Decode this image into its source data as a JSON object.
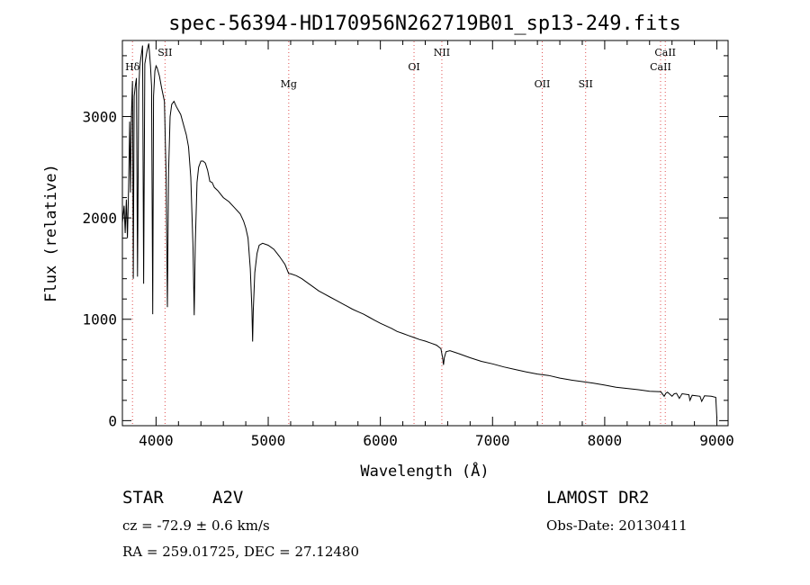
{
  "chart_data": {
    "type": "line",
    "title": "spec-56394-HD170956N262719B01_sp13-249.fits",
    "xlabel": "Wavelength (Å)",
    "ylabel": "Flux (relative)",
    "xlim": [
      3700,
      9100
    ],
    "ylim": [
      -50,
      3750
    ],
    "xticks": [
      4000,
      5000,
      6000,
      7000,
      8000,
      9000
    ],
    "yticks": [
      0,
      1000,
      2000,
      3000
    ],
    "grid": false,
    "series": [
      {
        "points": [
          [
            3700,
            1950
          ],
          [
            3715,
            2120
          ],
          [
            3725,
            1850
          ],
          [
            3735,
            2180
          ],
          [
            3745,
            1800
          ],
          [
            3755,
            2300
          ],
          [
            3765,
            2950
          ],
          [
            3772,
            2250
          ],
          [
            3780,
            3000
          ],
          [
            3790,
            3350
          ],
          [
            3797,
            1400
          ],
          [
            3805,
            3200
          ],
          [
            3815,
            3300
          ],
          [
            3825,
            3380
          ],
          [
            3835,
            1420
          ],
          [
            3845,
            3250
          ],
          [
            3855,
            3500
          ],
          [
            3870,
            3620
          ],
          [
            3880,
            3700
          ],
          [
            3889,
            1350
          ],
          [
            3900,
            3520
          ],
          [
            3920,
            3650
          ],
          [
            3935,
            3720
          ],
          [
            3950,
            3500
          ],
          [
            3960,
            3300
          ],
          [
            3970,
            1050
          ],
          [
            3978,
            3200
          ],
          [
            3990,
            3450
          ],
          [
            4000,
            3500
          ],
          [
            4010,
            3480
          ],
          [
            4030,
            3400
          ],
          [
            4050,
            3280
          ],
          [
            4075,
            3150
          ],
          [
            4090,
            2400
          ],
          [
            4101,
            1120
          ],
          [
            4112,
            2450
          ],
          [
            4125,
            3000
          ],
          [
            4140,
            3120
          ],
          [
            4160,
            3150
          ],
          [
            4180,
            3100
          ],
          [
            4200,
            3060
          ],
          [
            4220,
            3020
          ],
          [
            4250,
            2900
          ],
          [
            4270,
            2820
          ],
          [
            4290,
            2700
          ],
          [
            4310,
            2400
          ],
          [
            4330,
            1700
          ],
          [
            4340,
            1040
          ],
          [
            4350,
            1750
          ],
          [
            4365,
            2350
          ],
          [
            4380,
            2500
          ],
          [
            4400,
            2560
          ],
          [
            4420,
            2560
          ],
          [
            4440,
            2540
          ],
          [
            4460,
            2470
          ],
          [
            4480,
            2360
          ],
          [
            4500,
            2350
          ],
          [
            4520,
            2300
          ],
          [
            4550,
            2270
          ],
          [
            4600,
            2200
          ],
          [
            4650,
            2160
          ],
          [
            4700,
            2100
          ],
          [
            4750,
            2040
          ],
          [
            4780,
            1970
          ],
          [
            4800,
            1900
          ],
          [
            4820,
            1800
          ],
          [
            4840,
            1500
          ],
          [
            4855,
            1100
          ],
          [
            4861,
            780
          ],
          [
            4867,
            1080
          ],
          [
            4880,
            1460
          ],
          [
            4900,
            1650
          ],
          [
            4920,
            1730
          ],
          [
            4950,
            1750
          ],
          [
            5000,
            1730
          ],
          [
            5050,
            1690
          ],
          [
            5100,
            1620
          ],
          [
            5150,
            1540
          ],
          [
            5183,
            1450
          ],
          [
            5200,
            1450
          ],
          [
            5250,
            1430
          ],
          [
            5300,
            1400
          ],
          [
            5350,
            1360
          ],
          [
            5400,
            1320
          ],
          [
            5450,
            1280
          ],
          [
            5500,
            1250
          ],
          [
            5550,
            1220
          ],
          [
            5600,
            1190
          ],
          [
            5650,
            1160
          ],
          [
            5700,
            1130
          ],
          [
            5750,
            1100
          ],
          [
            5800,
            1075
          ],
          [
            5850,
            1050
          ],
          [
            5900,
            1020
          ],
          [
            5950,
            990
          ],
          [
            6000,
            960
          ],
          [
            6050,
            935
          ],
          [
            6100,
            910
          ],
          [
            6150,
            880
          ],
          [
            6200,
            860
          ],
          [
            6250,
            840
          ],
          [
            6300,
            820
          ],
          [
            6350,
            800
          ],
          [
            6400,
            785
          ],
          [
            6450,
            765
          ],
          [
            6500,
            745
          ],
          [
            6540,
            710
          ],
          [
            6555,
            620
          ],
          [
            6563,
            550
          ],
          [
            6570,
            620
          ],
          [
            6585,
            680
          ],
          [
            6620,
            690
          ],
          [
            6700,
            660
          ],
          [
            6800,
            620
          ],
          [
            6900,
            585
          ],
          [
            7000,
            560
          ],
          [
            7100,
            530
          ],
          [
            7200,
            505
          ],
          [
            7300,
            480
          ],
          [
            7400,
            460
          ],
          [
            7500,
            445
          ],
          [
            7600,
            420
          ],
          [
            7700,
            400
          ],
          [
            7800,
            385
          ],
          [
            7900,
            370
          ],
          [
            8000,
            350
          ],
          [
            8100,
            330
          ],
          [
            8200,
            318
          ],
          [
            8300,
            305
          ],
          [
            8400,
            290
          ],
          [
            8500,
            285
          ],
          [
            8530,
            240
          ],
          [
            8545,
            270
          ],
          [
            8560,
            280
          ],
          [
            8600,
            240
          ],
          [
            8620,
            265
          ],
          [
            8640,
            270
          ],
          [
            8665,
            220
          ],
          [
            8690,
            265
          ],
          [
            8750,
            255
          ],
          [
            8760,
            200
          ],
          [
            8780,
            250
          ],
          [
            8850,
            240
          ],
          [
            8865,
            190
          ],
          [
            8890,
            245
          ],
          [
            8950,
            240
          ],
          [
            8990,
            230
          ],
          [
            9000,
            30
          ]
        ]
      }
    ],
    "lines": [
      {
        "label": "Hδ",
        "x": 3790,
        "row": 0
      },
      {
        "label": "SII",
        "x": 4080,
        "row": -1
      },
      {
        "label": "Mg",
        "x": 5183,
        "row": 2
      },
      {
        "label": "OI",
        "x": 6300,
        "row": 0
      },
      {
        "label": "NII",
        "x": 6548,
        "row": -1
      },
      {
        "label": "OII",
        "x": 7443,
        "row": 2
      },
      {
        "label": "SII",
        "x": 7830,
        "row": 2
      },
      {
        "label": "CaII",
        "x": 8540,
        "row": -1
      },
      {
        "label": "CaII",
        "x": 8498,
        "row": 0
      }
    ]
  },
  "info": {
    "object_type": "STAR",
    "spectral_class": "A2V",
    "survey": "LAMOST DR2",
    "redshift": "cz = -72.9 ± 0.6 km/s",
    "obs_date": "Obs-Date: 20130411",
    "coordinates": "RA = 259.01725, DEC =  27.12480"
  }
}
